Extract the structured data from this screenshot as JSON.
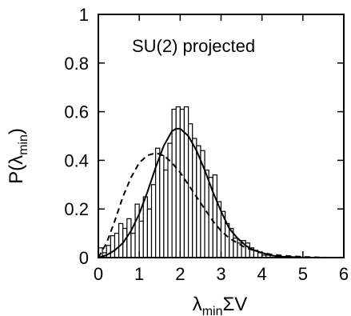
{
  "chart_data": {
    "type": "bar",
    "annotation": "SU(2) projected",
    "xlabel": {
      "main1": "λ",
      "sub": "min",
      "main2": "ΣV"
    },
    "ylabel": {
      "main1": "P(λ",
      "sub": "min",
      "main2": ")"
    },
    "xlim": [
      0,
      6
    ],
    "ylim": [
      0,
      1
    ],
    "xticks": [
      0,
      1,
      2,
      3,
      4,
      5,
      6
    ],
    "yticks": [
      0,
      0.2,
      0.4,
      0.6,
      0.8,
      1
    ],
    "ytick_labels": [
      "0",
      "0.2",
      "0.4",
      "0.6",
      "0.8",
      "1"
    ],
    "grid": false,
    "bin_width": 0.1,
    "histogram": {
      "bin_left_edges": [
        0.0,
        0.1,
        0.2,
        0.3,
        0.4,
        0.5,
        0.6,
        0.7,
        0.8,
        0.9,
        1.0,
        1.1,
        1.2,
        1.3,
        1.4,
        1.5,
        1.6,
        1.7,
        1.8,
        1.9,
        2.0,
        2.1,
        2.2,
        2.3,
        2.4,
        2.5,
        2.6,
        2.7,
        2.8,
        2.9,
        3.0,
        3.1,
        3.2,
        3.3,
        3.4,
        3.5,
        3.6,
        3.7,
        3.8,
        3.9,
        4.0,
        4.1,
        4.2,
        4.3,
        4.4,
        4.5,
        4.6,
        4.7,
        4.8,
        4.9,
        5.0,
        5.1,
        5.2,
        5.3,
        5.4,
        5.5,
        5.6,
        5.7,
        5.8,
        5.9
      ],
      "values": [
        0.04,
        0.02,
        0.05,
        0.09,
        0.1,
        0.14,
        0.12,
        0.16,
        0.1,
        0.22,
        0.15,
        0.25,
        0.2,
        0.3,
        0.45,
        0.42,
        0.36,
        0.47,
        0.61,
        0.62,
        0.61,
        0.62,
        0.55,
        0.49,
        0.46,
        0.44,
        0.36,
        0.33,
        0.34,
        0.23,
        0.19,
        0.14,
        0.12,
        0.08,
        0.06,
        0.07,
        0.06,
        0.04,
        0.03,
        0.02,
        0.01,
        0.01,
        0.0,
        0.0,
        0.0,
        0.0,
        0.0,
        0.0,
        0.0,
        0.0,
        0.0,
        0.0,
        0.0,
        0.0,
        0.0,
        0.0,
        0.0,
        0.0,
        0.0,
        0.0
      ]
    },
    "series": [
      {
        "style": "solid",
        "x": [
          0,
          0.2,
          0.4,
          0.6,
          0.8,
          1.0,
          1.2,
          1.4,
          1.6,
          1.8,
          1.9,
          2.0,
          2.2,
          2.4,
          2.6,
          2.8,
          3.0,
          3.2,
          3.4,
          3.6,
          3.8,
          4.0,
          4.2,
          4.4,
          4.6,
          4.8,
          5.0,
          5.2,
          5.4,
          5.6,
          5.8,
          6.0
        ],
        "y": [
          0.0,
          0.01,
          0.03,
          0.06,
          0.11,
          0.18,
          0.27,
          0.37,
          0.46,
          0.52,
          0.53,
          0.53,
          0.5,
          0.44,
          0.36,
          0.27,
          0.19,
          0.12,
          0.08,
          0.05,
          0.03,
          0.02,
          0.01,
          0.005,
          0.003,
          0.002,
          0.001,
          0.0,
          0.0,
          0.0,
          0.0,
          0.0
        ]
      },
      {
        "style": "dashed",
        "x": [
          0,
          0.2,
          0.4,
          0.6,
          0.8,
          1.0,
          1.2,
          1.4,
          1.6,
          1.8,
          2.0,
          2.2,
          2.4,
          2.6,
          2.8,
          3.0,
          3.2,
          3.4,
          3.6,
          3.8,
          4.0,
          4.2,
          4.4,
          4.6,
          4.8,
          5.0,
          5.2,
          5.4,
          5.6,
          5.8,
          6.0
        ],
        "y": [
          0.0,
          0.06,
          0.15,
          0.25,
          0.33,
          0.39,
          0.42,
          0.43,
          0.42,
          0.39,
          0.35,
          0.3,
          0.25,
          0.2,
          0.15,
          0.11,
          0.08,
          0.06,
          0.04,
          0.03,
          0.02,
          0.014,
          0.01,
          0.007,
          0.005,
          0.003,
          0.002,
          0.001,
          0.0,
          0.0,
          0.0
        ]
      }
    ],
    "colors": {
      "axis": "#000000",
      "bar_fill": "#ffffff",
      "bar_stroke": "#000000",
      "line": "#000000"
    }
  }
}
